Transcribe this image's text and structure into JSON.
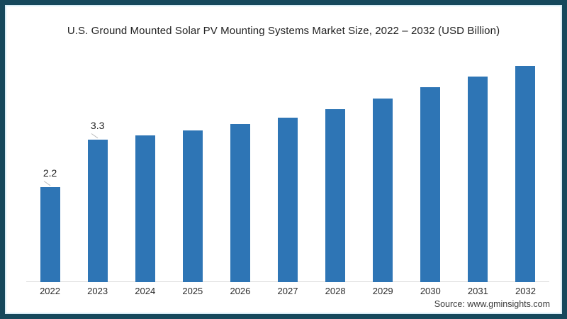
{
  "title": "U.S. Ground Mounted Solar PV Mounting Systems Market Size, 2022 – 2032 (USD Billion)",
  "source": "Source: www.gminsights.com",
  "frame": {
    "border_color": "#16485c",
    "background_color": "#ffffff"
  },
  "chart_data": {
    "type": "bar",
    "title": "U.S. Ground Mounted Solar PV Mounting Systems Market Size, 2022 – 2032 (USD Billion)",
    "xlabel": "",
    "ylabel": "",
    "categories": [
      "2022",
      "2023",
      "2024",
      "2025",
      "2026",
      "2027",
      "2028",
      "2029",
      "2030",
      "2031",
      "2032"
    ],
    "values": [
      2.2,
      3.3,
      3.4,
      3.5,
      3.65,
      3.8,
      4.0,
      4.25,
      4.5,
      4.75,
      5.0
    ],
    "point_labels": [
      "2.2",
      "3.3",
      "",
      "",
      "",
      "",
      "",
      "",
      "",
      "",
      ""
    ],
    "ylim": [
      0,
      5.2
    ],
    "grid": false,
    "legend": false,
    "y_axis_visible": false,
    "bar_color": "#2e75b5",
    "axis_line_color": "#d9d9d9",
    "label_color": "#1f1f1f"
  }
}
